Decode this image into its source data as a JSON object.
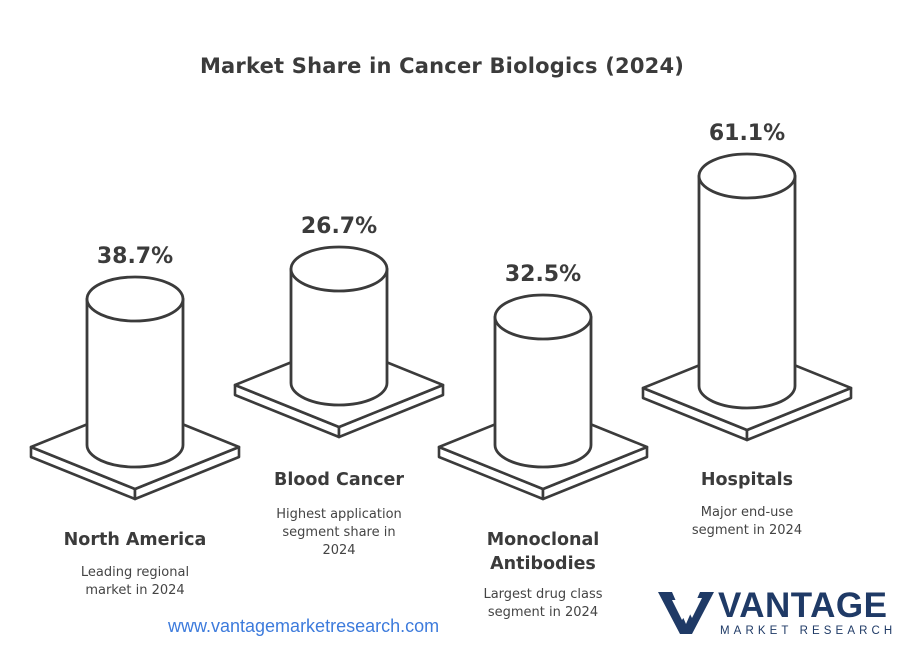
{
  "chart_data": {
    "type": "bar",
    "title": "Market Share in Cancer Biologics (2024)",
    "categories": [
      "North America",
      "Blood Cancer",
      "Monoclonal Antibodies",
      "Hospitals"
    ],
    "values": [
      38.7,
      26.7,
      32.5,
      61.1
    ],
    "value_labels": [
      "38.7%",
      "26.7%",
      "32.5%",
      "61.1%"
    ],
    "descriptions": [
      [
        "Leading regional",
        "market in 2024"
      ],
      [
        "Highest application",
        "segment share in",
        "2024"
      ],
      [
        "Largest drug class",
        "segment in 2024"
      ],
      [
        "Major end-use",
        "segment in 2024"
      ]
    ],
    "category_lines": [
      [
        "North America"
      ],
      [
        "Blood Cancer"
      ],
      [
        "Monoclonal",
        "Antibodies"
      ],
      [
        "Hospitals"
      ]
    ],
    "unit": "%"
  },
  "footer": {
    "url": "www.vantagemarketresearch.com"
  },
  "logo": {
    "name": "VANTAGE",
    "tagline": "MARKET RESEARCH",
    "color": "#1f3a66"
  },
  "colors": {
    "ink": "#3b3b3b",
    "url": "#3d7bdc"
  }
}
